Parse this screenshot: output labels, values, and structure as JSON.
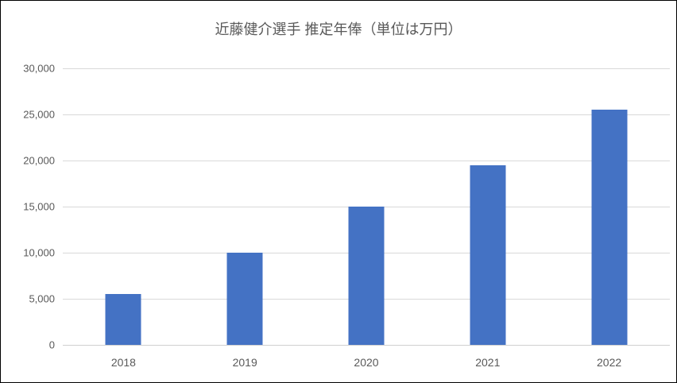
{
  "chart_data": {
    "type": "bar",
    "title": "近藤健介選手 推定年俸（単位は万円）",
    "categories": [
      "2018",
      "2019",
      "2020",
      "2021",
      "2022"
    ],
    "values": [
      5500,
      10000,
      15000,
      19500,
      25500
    ],
    "xlabel": "",
    "ylabel": "",
    "ylim": [
      0,
      30000
    ],
    "y_ticks": [
      {
        "value": 0,
        "label": "0"
      },
      {
        "value": 5000,
        "label": "5,000"
      },
      {
        "value": 10000,
        "label": "10,000"
      },
      {
        "value": 15000,
        "label": "15,000"
      },
      {
        "value": 20000,
        "label": "20,000"
      },
      {
        "value": 25000,
        "label": "25,000"
      },
      {
        "value": 30000,
        "label": "30,000"
      }
    ],
    "grid": true,
    "legend": "none",
    "colors": {
      "bar": "#4472c4",
      "gridline": "#d9d9d9",
      "axis": "#d0d0d0",
      "text": "#595959",
      "border": "#000000",
      "background": "#ffffff"
    }
  }
}
